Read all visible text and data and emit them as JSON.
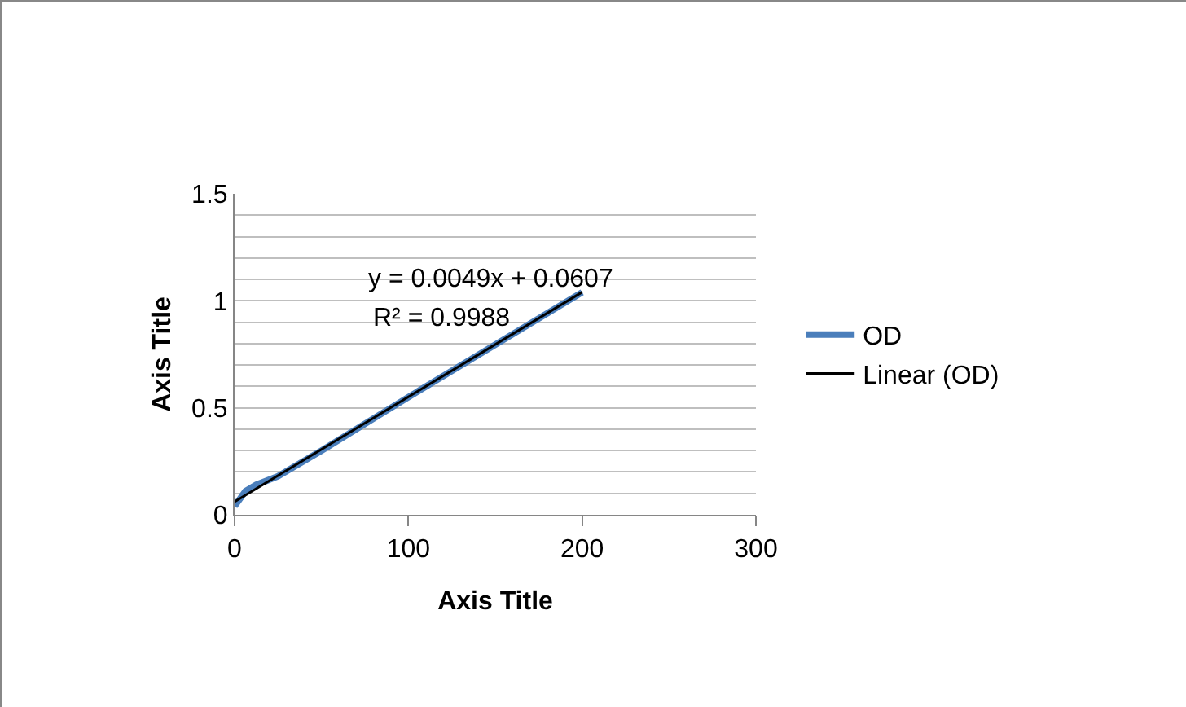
{
  "chart_data": {
    "type": "line",
    "xlabel": "Axis Title",
    "ylabel": "Axis Title",
    "xlim": [
      0,
      300
    ],
    "xticks": [
      0,
      100,
      200,
      300
    ],
    "ylim": [
      0,
      1.5
    ],
    "yticks": [
      0,
      {
        "value": 0.1,
        "label": null
      },
      {
        "value": 0.2,
        "label": null
      },
      {
        "value": 0.3,
        "label": null
      },
      {
        "value": 0.4,
        "label": null
      },
      0.5,
      {
        "value": 0.6,
        "label": null
      },
      {
        "value": 0.7,
        "label": null
      },
      {
        "value": 0.8,
        "label": null
      },
      {
        "value": 0.9,
        "label": null
      },
      1,
      {
        "value": 1.1,
        "label": null
      },
      {
        "value": 1.2,
        "label": null
      },
      {
        "value": 1.3,
        "label": null
      },
      {
        "value": 1.4,
        "label": null
      },
      1.5
    ],
    "grid": "y",
    "legend": "right",
    "marker": "none",
    "series": [
      {
        "name": "OD",
        "color": "#4a7ebb",
        "x": [
          0,
          6.25,
          12.5,
          25,
          50,
          100,
          200
        ],
        "values": [
          0.04,
          0.11,
          0.14,
          0.18,
          0.3,
          0.55,
          1.04
        ]
      },
      {
        "name": "Linear (OD)",
        "color": "#000000",
        "x": [
          0,
          200
        ],
        "values": [
          0.0607,
          1.0407
        ]
      }
    ],
    "annotations": [
      "y = 0.0049x + 0.0607",
      "R² = 0.9988"
    ]
  }
}
